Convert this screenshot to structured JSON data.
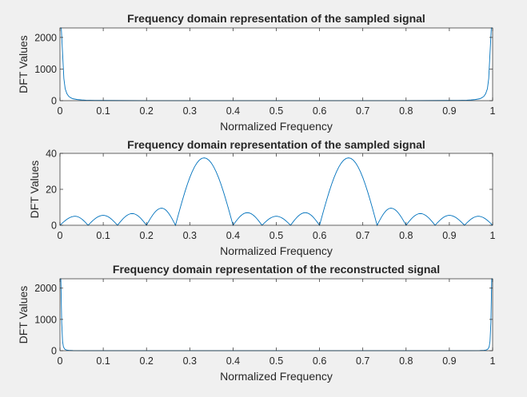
{
  "chart_data": [
    {
      "type": "line",
      "title": "Frequency domain representation of the sampled signal",
      "xlabel": "Normalized Frequency",
      "ylabel": "DFT Values",
      "xlim": [
        0,
        1
      ],
      "ylim": [
        0,
        2300
      ],
      "xticks": [
        0,
        0.1,
        0.2,
        0.3,
        0.4,
        0.5,
        0.6,
        0.7,
        0.8,
        0.9,
        1
      ],
      "yticks": [
        0,
        1000,
        2000
      ],
      "xtick_labels": [
        "0",
        "0.1",
        "0.2",
        "0.3",
        "0.4",
        "0.5",
        "0.6",
        "0.7",
        "0.8",
        "0.9",
        "1"
      ],
      "ytick_labels": [
        "0",
        "1000",
        "2000"
      ],
      "grid": false,
      "color": "#0072bd",
      "series": [
        {
          "x": [
            0,
            0.003,
            0.006,
            0.009,
            0.012,
            0.016,
            0.02,
            0.025,
            0.03,
            0.04,
            0.05,
            0.06,
            0.08,
            0.1,
            0.15,
            0.2,
            0.3,
            0.4,
            0.5,
            0.6,
            0.7,
            0.8,
            0.85,
            0.9,
            0.92,
            0.94,
            0.95,
            0.96,
            0.97,
            0.975,
            0.98,
            0.984,
            0.988,
            0.991,
            0.994,
            0.997,
            1
          ],
          "y": [
            2300,
            2300,
            1500,
            700,
            380,
            220,
            140,
            90,
            60,
            35,
            22,
            15,
            9,
            6,
            3,
            2,
            1,
            1,
            1,
            1,
            1,
            2,
            3,
            6,
            9,
            15,
            22,
            35,
            60,
            90,
            140,
            220,
            380,
            700,
            1500,
            2300,
            2300
          ]
        }
      ]
    },
    {
      "type": "line",
      "title": "Frequency domain representation of the sampled signal",
      "xlabel": "Normalized Frequency",
      "ylabel": "DFT Values",
      "xlim": [
        0,
        1
      ],
      "ylim": [
        0,
        40
      ],
      "xticks": [
        0,
        0.1,
        0.2,
        0.3,
        0.4,
        0.5,
        0.6,
        0.7,
        0.8,
        0.9,
        1
      ],
      "yticks": [
        0,
        20,
        40
      ],
      "xtick_labels": [
        "0",
        "0.1",
        "0.2",
        "0.3",
        "0.4",
        "0.5",
        "0.6",
        "0.7",
        "0.8",
        "0.9",
        "1"
      ],
      "ytick_labels": [
        "0",
        "20",
        "40"
      ],
      "grid": false,
      "color": "#0072bd",
      "series": [
        {
          "x": [
            0,
            0.035,
            0.065,
            0.1,
            0.133,
            0.167,
            0.2,
            0.235,
            0.267,
            0.333,
            0.4,
            0.433,
            0.467,
            0.5,
            0.533,
            0.567,
            0.6,
            0.667,
            0.733,
            0.765,
            0.8,
            0.833,
            0.867,
            0.9,
            0.935,
            0.967,
            1
          ],
          "y": [
            0,
            5,
            0,
            5.5,
            0,
            6.5,
            0,
            9.5,
            0,
            37.5,
            0,
            7,
            0,
            5,
            0,
            7,
            0,
            37.5,
            0,
            9.5,
            0,
            6.5,
            0,
            5.5,
            0,
            5,
            0
          ],
          "lobes": true
        }
      ]
    },
    {
      "type": "line",
      "title": "Frequency domain representation of the reconstructed signal",
      "xlabel": "Normalized Frequency",
      "ylabel": "DFT Values",
      "xlim": [
        0,
        1
      ],
      "ylim": [
        0,
        2300
      ],
      "xticks": [
        0,
        0.1,
        0.2,
        0.3,
        0.4,
        0.5,
        0.6,
        0.7,
        0.8,
        0.9,
        1
      ],
      "yticks": [
        0,
        1000,
        2000
      ],
      "xtick_labels": [
        "0",
        "0.1",
        "0.2",
        "0.3",
        "0.4",
        "0.5",
        "0.6",
        "0.7",
        "0.8",
        "0.9",
        "1"
      ],
      "ytick_labels": [
        "0",
        "1000",
        "2000"
      ],
      "grid": false,
      "color": "#0072bd",
      "series": [
        {
          "x": [
            0,
            0.002,
            0.004,
            0.006,
            0.008,
            0.011,
            0.015,
            0.02,
            0.03,
            0.05,
            0.1,
            0.3,
            0.5,
            0.7,
            0.9,
            0.95,
            0.97,
            0.98,
            0.985,
            0.989,
            0.992,
            0.994,
            0.996,
            0.998,
            1
          ],
          "y": [
            2300,
            2300,
            900,
            300,
            120,
            50,
            20,
            10,
            4,
            2,
            1,
            1,
            1,
            1,
            1,
            2,
            4,
            10,
            20,
            50,
            120,
            300,
            900,
            2300,
            2300
          ]
        }
      ]
    }
  ]
}
